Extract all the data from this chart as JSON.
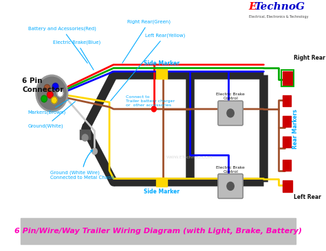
{
  "title": "6 Pin/Wire/Way Trailer Wiring Diagram (with Light, Brake, Battery)",
  "title_color": "#FF00BB",
  "title_bg": "#C0C0C0",
  "bg_color": "#FFFFFF",
  "logo_E": "E",
  "logo_rest": "TechnoG",
  "logo_E_color": "#FF0000",
  "logo_rest_color": "#0000CC",
  "logo_sub": "Electrical, Electronics & Technology",
  "ann_color": "#00AAFF",
  "frame_color": "#2A2A2A",
  "wire_red": "#FF0000",
  "wire_blue": "#0000FF",
  "wire_green": "#00AA00",
  "wire_yellow": "#FFD700",
  "wire_brown": "#A0522D",
  "wire_white": "#CCCCCC",
  "connector_label": "6 Pin\nConnector",
  "label_battery": "Battery and Acessories(Red)",
  "label_brake": "Electric Brake(Blue)",
  "label_right_rear_g": "Right Rear(Green)",
  "label_left_rear_y": "Left Rear(Yellow)",
  "label_markers": "Markers(Brown)",
  "label_ground": "Ground(White)",
  "label_connect": "Connect to\nTrailer battery charger\nor  other accessories",
  "label_ground_metal": "Ground (White Wire)\nConnected to Metal Chasis",
  "label_side_marker": "Side Marker",
  "label_brake_control": "Electric Brake\nControl",
  "label_right_rear": "Right Rear",
  "label_left_rear": "Left Rear",
  "label_rear_markers": "Rear Markers"
}
